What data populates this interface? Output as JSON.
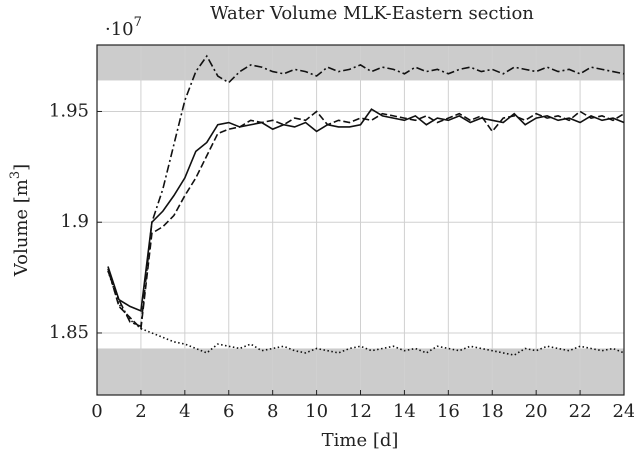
{
  "chart_data": {
    "type": "line",
    "title": "Water Volume MLK-Eastern section",
    "y_offset": {
      "base": "·10",
      "exponent": "7"
    },
    "x_label": "Time [d]",
    "y_label": {
      "text": "Volume [m",
      "sup": "3",
      "end": "]"
    },
    "xlim": [
      0,
      24
    ],
    "xticks": [
      0,
      2,
      4,
      6,
      8,
      10,
      12,
      14,
      16,
      18,
      20,
      22,
      24
    ],
    "ylim": [
      1.822,
      1.98
    ],
    "yticks": [
      1.85,
      1.9,
      1.95
    ],
    "grid": true,
    "bands": [
      {
        "from": 1.964,
        "to": 1.98,
        "color": "#cccccc"
      },
      {
        "from": 1.822,
        "to": 1.843,
        "color": "#cccccc"
      }
    ],
    "x": [
      0.5,
      1,
      1.5,
      2,
      2.5,
      3,
      3.5,
      4,
      4.5,
      5,
      5.5,
      6,
      6.5,
      7,
      7.5,
      8,
      8.5,
      9,
      9.5,
      10,
      10.5,
      11,
      11.5,
      12,
      12.5,
      13,
      13.5,
      14,
      14.5,
      15,
      15.5,
      16,
      16.5,
      17,
      17.5,
      18,
      18.5,
      19,
      19.5,
      20,
      20.5,
      21,
      21.5,
      22,
      22.5,
      23,
      23.5,
      24
    ],
    "series": [
      {
        "color": "#111111",
        "style": "solid",
        "values": [
          1.88,
          1.865,
          1.862,
          1.86,
          1.9,
          1.905,
          1.912,
          1.92,
          1.932,
          1.936,
          1.944,
          1.945,
          1.943,
          1.944,
          1.945,
          1.942,
          1.944,
          1.943,
          1.945,
          1.941,
          1.944,
          1.943,
          1.943,
          1.944,
          1.951,
          1.948,
          1.947,
          1.946,
          1.948,
          1.944,
          1.947,
          1.946,
          1.948,
          1.945,
          1.947,
          1.946,
          1.945,
          1.949,
          1.944,
          1.947,
          1.948,
          1.946,
          1.947,
          1.945,
          1.948,
          1.946,
          1.947,
          1.945
        ]
      },
      {
        "color": "#111111",
        "style": "dashed",
        "values": [
          1.879,
          1.862,
          1.857,
          1.852,
          1.895,
          1.898,
          1.903,
          1.912,
          1.92,
          1.93,
          1.94,
          1.942,
          1.943,
          1.946,
          1.945,
          1.946,
          1.944,
          1.947,
          1.946,
          1.95,
          1.944,
          1.946,
          1.945,
          1.947,
          1.946,
          1.949,
          1.948,
          1.947,
          1.946,
          1.948,
          1.945,
          1.947,
          1.949,
          1.946,
          1.948,
          1.941,
          1.947,
          1.948,
          1.946,
          1.949,
          1.947,
          1.948,
          1.946,
          1.95,
          1.947,
          1.948,
          1.946,
          1.949
        ]
      },
      {
        "color": "#111111",
        "style": "dashdot",
        "values": [
          1.878,
          1.865,
          1.855,
          1.853,
          1.9,
          1.915,
          1.935,
          1.955,
          1.968,
          1.975,
          1.966,
          1.963,
          1.968,
          1.971,
          1.97,
          1.968,
          1.967,
          1.969,
          1.968,
          1.966,
          1.97,
          1.968,
          1.969,
          1.971,
          1.968,
          1.97,
          1.969,
          1.967,
          1.97,
          1.968,
          1.969,
          1.967,
          1.969,
          1.97,
          1.968,
          1.969,
          1.967,
          1.97,
          1.969,
          1.968,
          1.97,
          1.968,
          1.969,
          1.967,
          1.97,
          1.969,
          1.968,
          1.967
        ]
      },
      {
        "color": "#111111",
        "style": "dotted",
        "values": [
          1.878,
          1.863,
          1.856,
          1.852,
          1.85,
          1.848,
          1.846,
          1.845,
          1.843,
          1.841,
          1.845,
          1.844,
          1.843,
          1.845,
          1.842,
          1.843,
          1.844,
          1.842,
          1.841,
          1.843,
          1.842,
          1.841,
          1.843,
          1.844,
          1.842,
          1.843,
          1.844,
          1.842,
          1.843,
          1.841,
          1.844,
          1.843,
          1.842,
          1.844,
          1.843,
          1.842,
          1.841,
          1.84,
          1.843,
          1.842,
          1.844,
          1.843,
          1.842,
          1.844,
          1.843,
          1.842,
          1.843,
          1.841
        ]
      }
    ]
  }
}
